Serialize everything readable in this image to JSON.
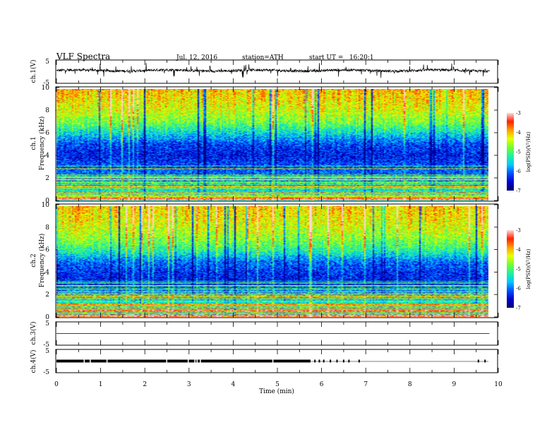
{
  "header": {
    "title": "VLF Spectra",
    "date": "Jul. 12, 2016",
    "station": "station=ATH",
    "start": "start UT =   16:20:1"
  },
  "chart_data": [
    {
      "type": "line",
      "name": "ch.1 waveform",
      "ylabel": "ch.1(V)",
      "ylim": [
        -5,
        5
      ],
      "yticks": [
        "5",
        "-5"
      ],
      "baseline": 0.5,
      "x_end": 9.8
    },
    {
      "type": "heatmap",
      "name": "ch.1 spectrogram",
      "ylabel": "ch.1 Frequency (kHz)",
      "ylabel_ch": "ch.1",
      "ylabel_freq": "Frequency (kHz)",
      "ylim": [
        0,
        10
      ],
      "yticks": [
        "0",
        "2",
        "4",
        "6",
        "8",
        "10"
      ],
      "colorbar": {
        "label": "log(PSD)(V²/Hz)",
        "range": [
          -7,
          -3
        ],
        "ticks": [
          "-3",
          "-4",
          "-5",
          "-6",
          "-7"
        ]
      },
      "profile_kHz": [
        0,
        1,
        2,
        3,
        4,
        5,
        6,
        7,
        8,
        9,
        10
      ],
      "profile_logPSD": [
        -5.3,
        -5.4,
        -6.0,
        -6.1,
        -6.4,
        -6.2,
        -5.5,
        -4.8,
        -4.4,
        -4.2,
        -4.0
      ]
    },
    {
      "type": "heatmap",
      "name": "ch.2 spectrogram",
      "ylabel": "ch.2 Frequency (kHz)",
      "ylabel_ch": "ch.2",
      "ylabel_freq": "Frequency (kHz)",
      "ylim": [
        0,
        10
      ],
      "yticks": [
        "0",
        "2",
        "4",
        "6",
        "8",
        "10"
      ],
      "colorbar": {
        "label": "log(PSD)(V²/Hz)",
        "range": [
          -7,
          -3
        ],
        "ticks": [
          "-3",
          "-4",
          "-5",
          "-6",
          "-7"
        ]
      },
      "profile_kHz": [
        0,
        1,
        2,
        3,
        4,
        5,
        6,
        7,
        8,
        9,
        10
      ],
      "profile_logPSD": [
        -5.4,
        -5.2,
        -5.7,
        -6.4,
        -6.3,
        -6.0,
        -5.2,
        -4.7,
        -4.4,
        -4.2,
        -4.1
      ]
    },
    {
      "type": "line",
      "name": "ch.3 waveform",
      "ylabel": "ch.3(V)",
      "ylim": [
        -5,
        5
      ],
      "yticks": [
        "5",
        "-5"
      ],
      "baseline": 0,
      "x_end": 9.8
    },
    {
      "type": "line",
      "name": "ch.4 waveform",
      "ylabel": "ch.4(V)",
      "ylim": [
        -5,
        5
      ],
      "yticks": [
        "5",
        "-5"
      ],
      "baseline": 0,
      "x_end": 9.8,
      "dense_until_min": 5.75,
      "spikes_min": [
        5.85,
        5.95,
        6.05,
        6.2,
        6.35,
        6.5,
        6.62,
        6.85,
        9.55,
        9.7
      ]
    }
  ],
  "x_axis": {
    "xlabel": "Time (min)",
    "xlim": [
      0,
      10
    ],
    "ticks": [
      "0",
      "1",
      "2",
      "3",
      "4",
      "5",
      "6",
      "7",
      "8",
      "9",
      "10"
    ]
  },
  "colors": {
    "colormap": [
      "#000070",
      "#0000d0",
      "#0050ff",
      "#00c8ff",
      "#20f0a0",
      "#70ff30",
      "#e8ff00",
      "#ffa000",
      "#ff2000",
      "#ffd8d8"
    ],
    "line": "#000000"
  }
}
